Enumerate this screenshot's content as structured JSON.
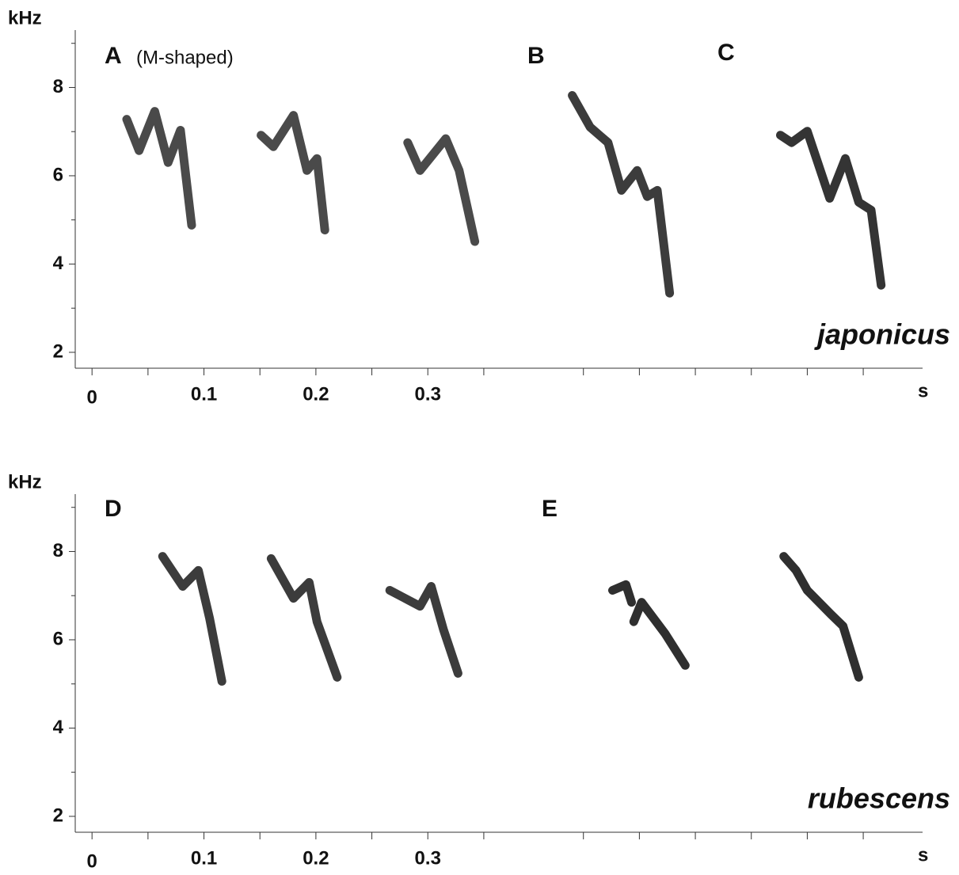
{
  "chart_data": [
    {
      "type": "line",
      "title": "japonicus",
      "y_label": "kHz",
      "x_label": "s",
      "annotations": [
        "A",
        "(M-shaped)",
        "B",
        "C"
      ],
      "xlim": [
        -0.015,
        0.742
      ],
      "ylim": [
        1.64,
        9.3
      ],
      "xticks": [
        0,
        0.1,
        0.2,
        0.3
      ],
      "minor_xticks": [
        0.05,
        0.15,
        0.25,
        0.35,
        0.439,
        0.489,
        0.539,
        0.589,
        0.639,
        0.689
      ],
      "yticks": [
        2,
        4,
        6,
        8
      ],
      "minor_yticks": [
        3,
        5,
        7,
        9
      ],
      "series": [
        {
          "color": "#2a2a2a",
          "x": [
            0.031,
            0.042,
            0.056,
            0.068,
            0.079,
            0.089
          ],
          "values": [
            7.28,
            6.57,
            7.46,
            6.3,
            7.03,
            4.88
          ]
        },
        {
          "color": "#2a2a2a",
          "x": [
            0.151,
            0.162,
            0.18,
            0.192,
            0.201,
            0.208
          ],
          "values": [
            6.92,
            6.66,
            7.37,
            6.12,
            6.39,
            4.77
          ]
        },
        {
          "color": "#2a2a2a",
          "x": [
            0.282,
            0.293,
            0.316,
            0.328,
            0.342
          ],
          "values": [
            6.75,
            6.12,
            6.84,
            6.12,
            4.51
          ]
        },
        {
          "color": "#1a1a1a",
          "x": [
            0.429,
            0.445,
            0.461,
            0.473,
            0.487,
            0.496,
            0.505,
            0.516
          ],
          "values": [
            7.82,
            7.1,
            6.75,
            5.67,
            6.12,
            5.53,
            5.67,
            3.34
          ]
        },
        {
          "color": "#111111",
          "x": [
            0.615,
            0.625,
            0.639,
            0.659,
            0.673,
            0.685,
            0.696,
            0.705
          ],
          "values": [
            6.92,
            6.75,
            7.01,
            5.49,
            6.39,
            5.4,
            5.22,
            3.52
          ]
        }
      ]
    },
    {
      "type": "line",
      "title": "rubescens",
      "y_label": "kHz",
      "x_label": "s",
      "annotations": [
        "D",
        "E"
      ],
      "xlim": [
        -0.015,
        0.742
      ],
      "ylim": [
        1.64,
        9.3
      ],
      "xticks": [
        0,
        0.1,
        0.2,
        0.3
      ],
      "minor_xticks": [
        0.05,
        0.15,
        0.25,
        0.35,
        0.439,
        0.489,
        0.539,
        0.589,
        0.639,
        0.689
      ],
      "yticks": [
        2,
        4,
        6,
        8
      ],
      "minor_yticks": [
        3,
        5,
        7,
        9
      ],
      "series": [
        {
          "color": "#1a1a1a",
          "x": [
            0.063,
            0.081,
            0.095,
            0.105,
            0.116
          ],
          "values": [
            7.89,
            7.21,
            7.57,
            6.49,
            5.06
          ]
        },
        {
          "color": "#1a1a1a",
          "x": [
            0.16,
            0.18,
            0.194,
            0.201,
            0.219
          ],
          "values": [
            7.84,
            6.94,
            7.3,
            6.41,
            5.15
          ]
        },
        {
          "color": "#1a1a1a",
          "x": [
            0.266,
            0.293,
            0.303,
            0.314,
            0.327
          ],
          "values": [
            7.12,
            6.76,
            7.21,
            6.23,
            5.24
          ]
        },
        {
          "color": "#0a0a0a",
          "x": [
            0.465,
            0.477,
            0.482,
            null,
            0.484,
            0.491,
            0.512,
            0.53
          ],
          "values": [
            7.12,
            7.25,
            6.85,
            null,
            6.41,
            6.85,
            6.14,
            5.42
          ]
        },
        {
          "color": "#0a0a0a",
          "x": [
            0.618,
            0.629,
            0.639,
            0.66,
            0.671,
            0.685
          ],
          "values": [
            7.89,
            7.57,
            7.12,
            6.58,
            6.31,
            5.15
          ]
        }
      ]
    }
  ]
}
